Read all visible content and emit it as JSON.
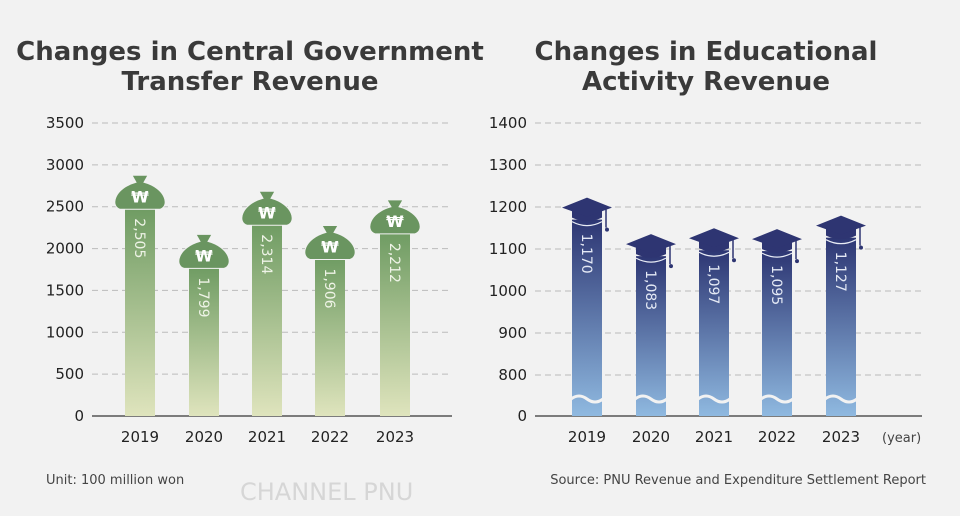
{
  "watermark": "CHANNEL PNU",
  "unit_note": "Unit: 100 million won",
  "source_note": "Source: PNU Revenue and Expenditure Settlement Report",
  "colors": {
    "green_top": "#6e9b62",
    "green_bottom": "#dfe4bd",
    "bag": "#6a9560",
    "navy_top": "#2d3673",
    "navy_bottom": "#8fb9e0",
    "cap": "#2e3572"
  },
  "chart_data": [
    {
      "type": "bar",
      "title_lines": [
        "Changes in Central Government",
        "Transfer Revenue"
      ],
      "categories": [
        "2019",
        "2020",
        "2021",
        "2022",
        "2023"
      ],
      "values": [
        2505,
        1799,
        2314,
        1906,
        2212
      ],
      "value_labels": [
        "2,505",
        "1,799",
        "2,314",
        "1,906",
        "2,212"
      ],
      "yticks": [
        0,
        500,
        1000,
        1500,
        2000,
        2500,
        3000,
        3500
      ],
      "ylim": [
        0,
        3500
      ],
      "grid": true,
      "icon": "money-bag-won-icon"
    },
    {
      "type": "bar",
      "title_lines": [
        "Changes in Educational",
        "Activity Revenue"
      ],
      "categories": [
        "2019",
        "2020",
        "2021",
        "2022",
        "2023"
      ],
      "values": [
        1170,
        1083,
        1097,
        1095,
        1127
      ],
      "value_labels": [
        "1,170",
        "1,083",
        "1,097",
        "1,095",
        "1,127"
      ],
      "yticks": [
        0,
        800,
        900,
        1000,
        1100,
        1200,
        1300,
        1400
      ],
      "ylim": [
        0,
        1400
      ],
      "axis_break": [
        0,
        800
      ],
      "xlabel_unit": "(year)",
      "grid": true,
      "icon": "graduation-cap-icon"
    }
  ]
}
